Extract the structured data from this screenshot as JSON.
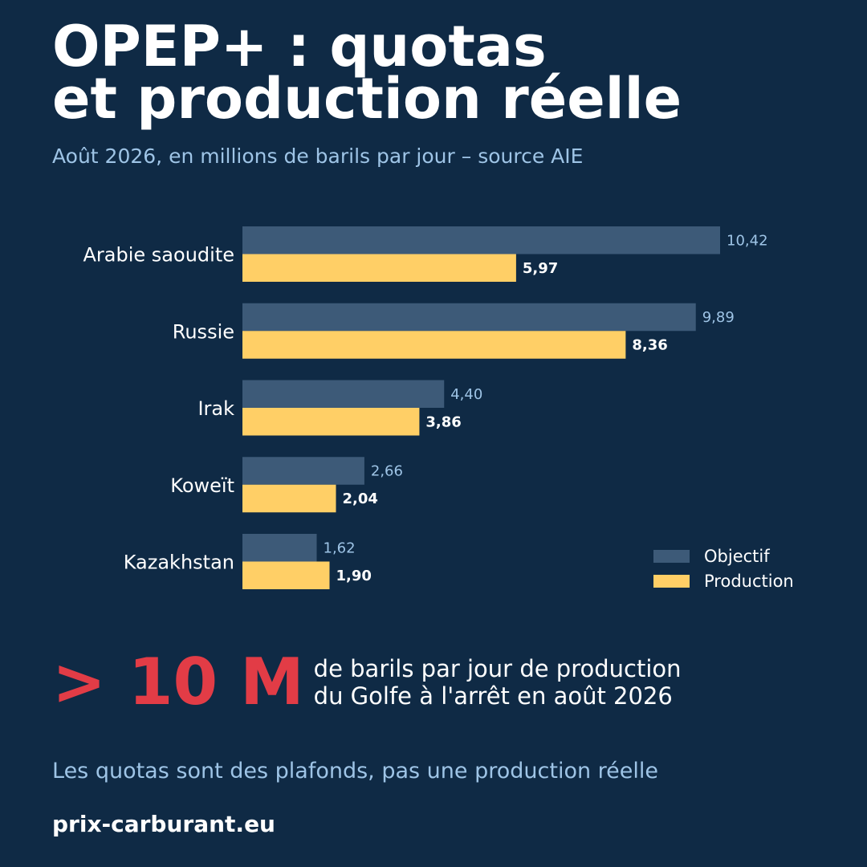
{
  "header": {
    "title_line1": "OPEP+ : quotas",
    "title_line2": "et production réelle",
    "subtitle": "Août 2026, en millions de barils par jour – source AIE"
  },
  "chart_data": {
    "type": "bar",
    "orientation": "horizontal",
    "categories": [
      "Arabie saoudite",
      "Russie",
      "Irak",
      "Koweït",
      "Kazakhstan"
    ],
    "series": [
      {
        "name": "Objectif",
        "values": [
          10.42,
          9.89,
          4.4,
          2.66,
          1.62
        ],
        "labels": [
          "10,42",
          "9,89",
          "4,40",
          "2,66",
          "1,62"
        ],
        "color": "#3d5a78"
      },
      {
        "name": "Production",
        "values": [
          5.97,
          8.36,
          3.86,
          2.04,
          1.9
        ],
        "labels": [
          "5,97",
          "8,36",
          "3,86",
          "2,04",
          "1,90"
        ],
        "color": "#ffcf66"
      }
    ],
    "xlim": [
      0,
      10.42
    ],
    "legend": "bottom-right",
    "grid": false
  },
  "callout": {
    "value": "> 10 M",
    "line1": "de barils par jour de production",
    "line2": "du Golfe à l'arrêt en août 2026"
  },
  "note": "Les quotas sont des plafonds, pas une production réelle",
  "brand": "prix-carburant.eu",
  "colors": {
    "background": "#0f2a45",
    "accent": "#e23c46",
    "muted_text": "#9ec4e6"
  }
}
